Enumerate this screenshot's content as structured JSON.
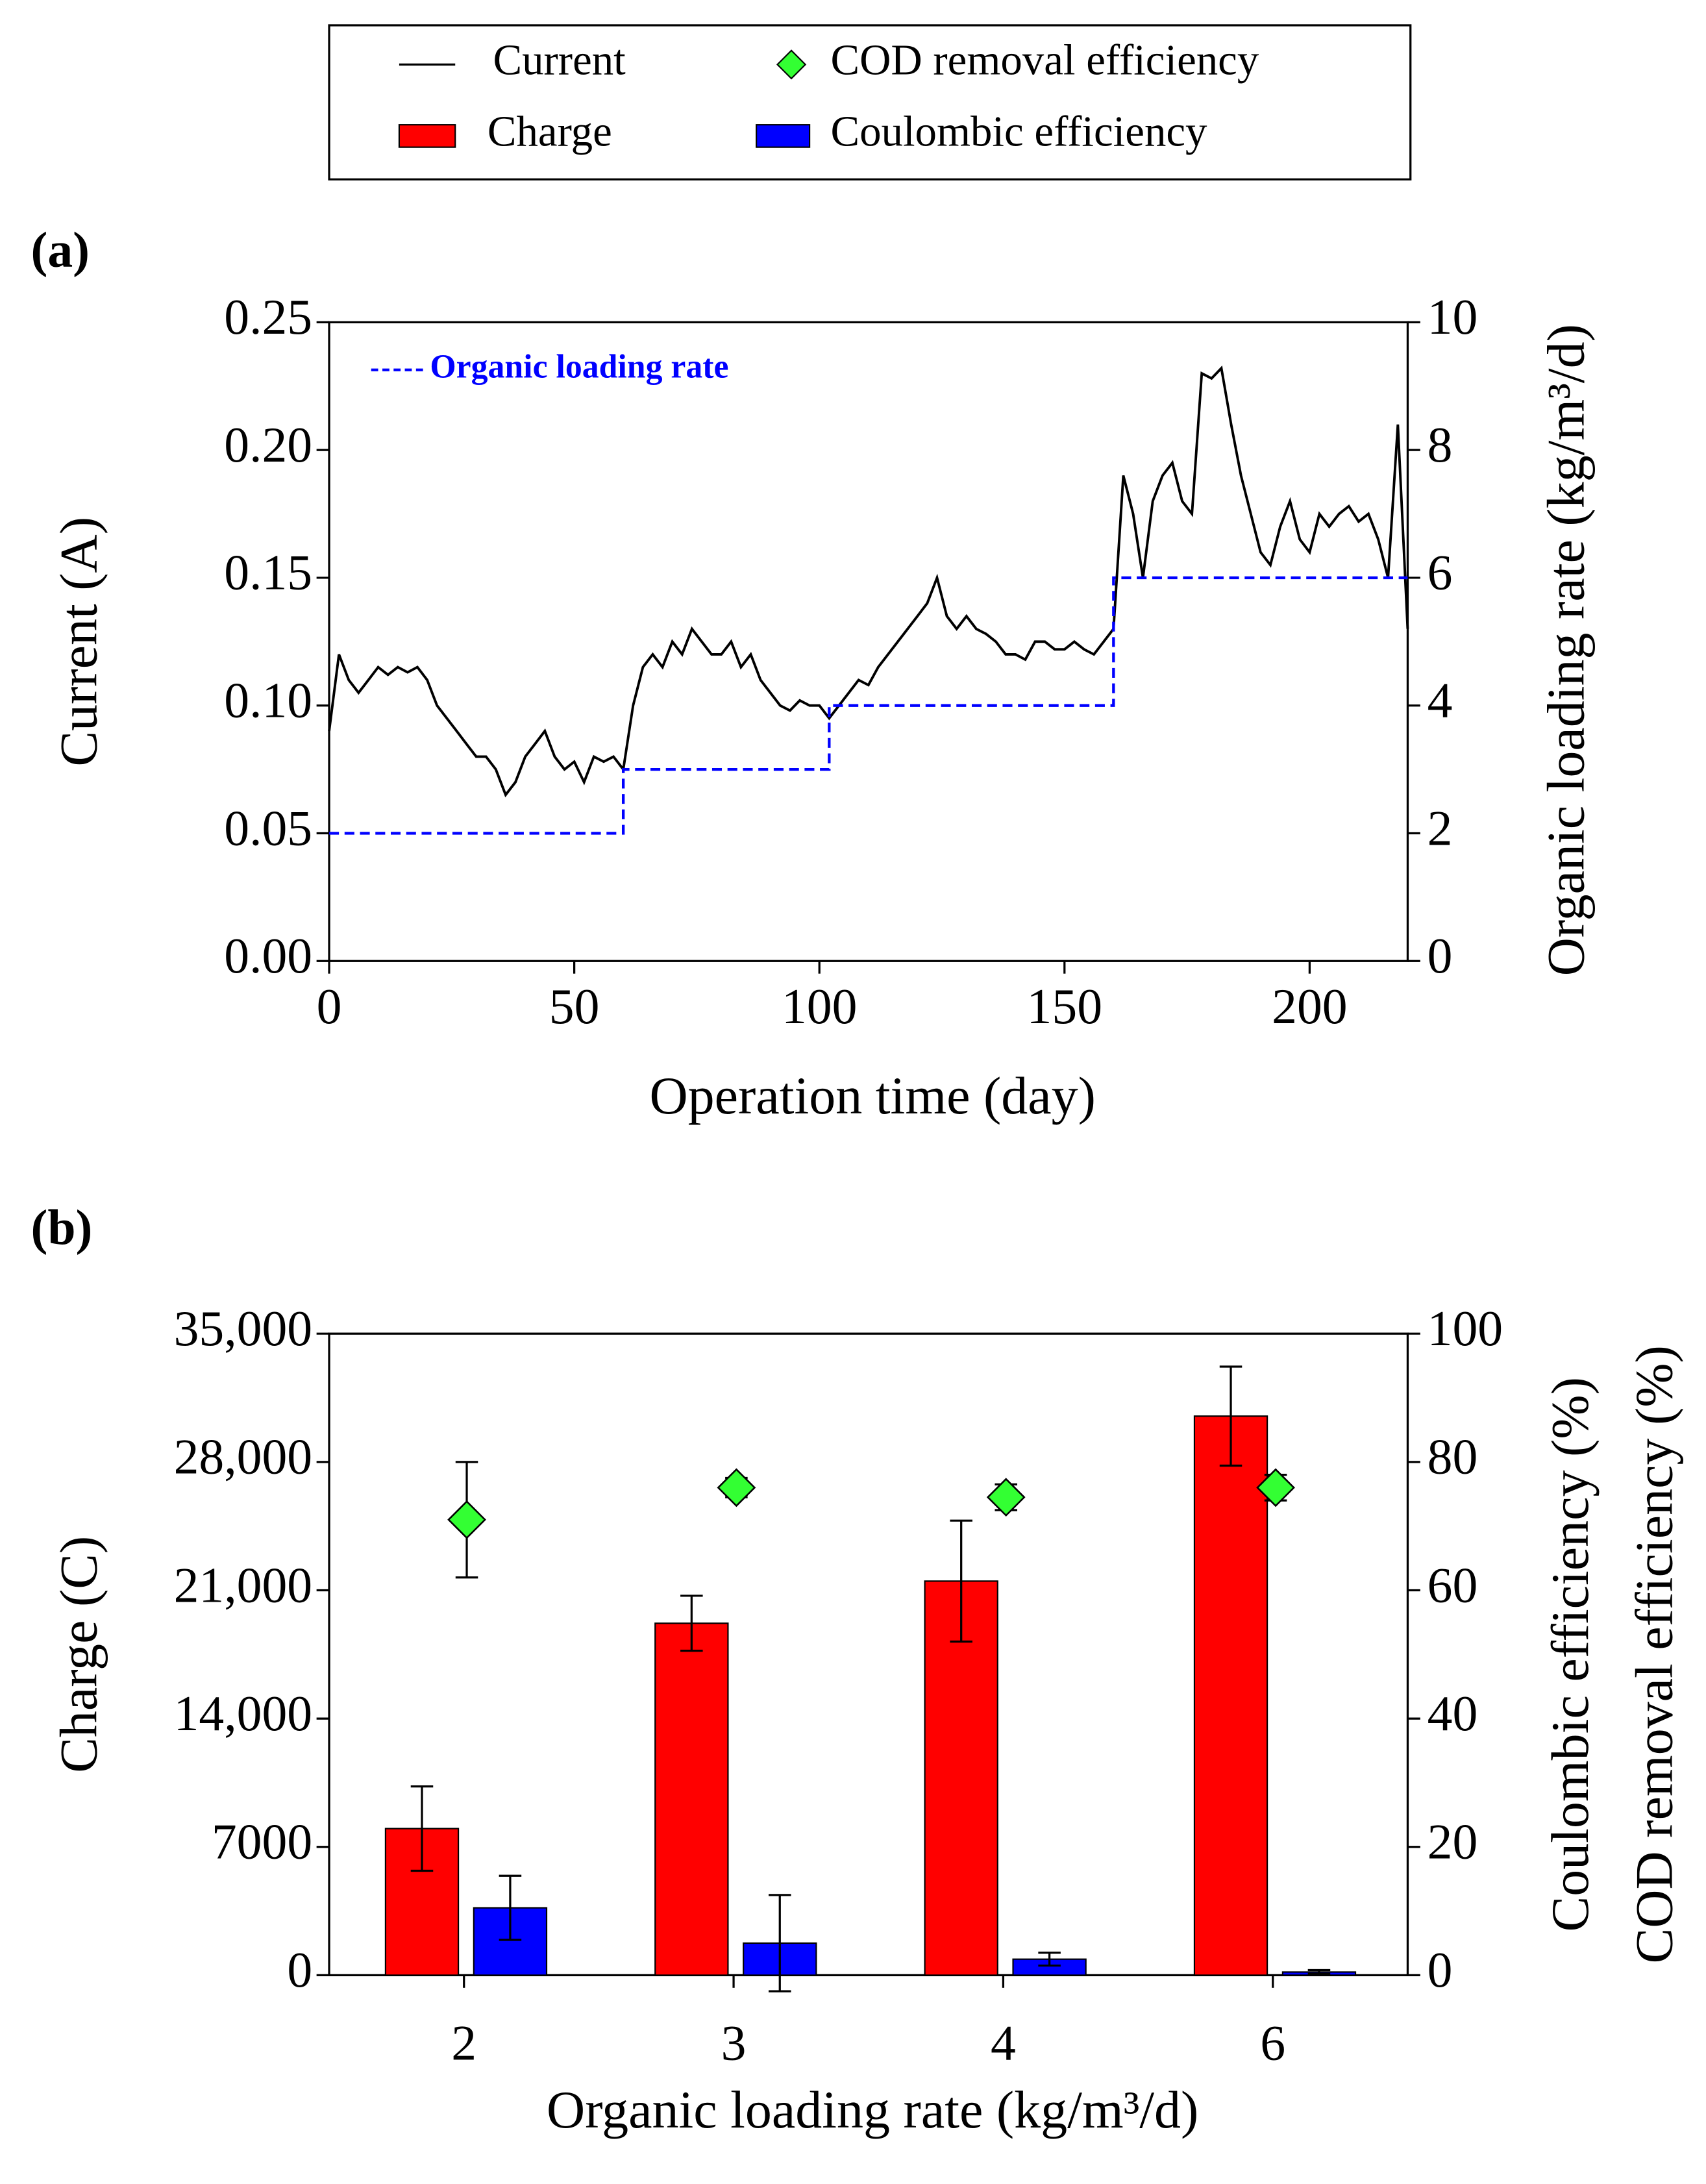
{
  "chart_data": [
    {
      "type": "line",
      "panel_label": "(a)",
      "x_label": "Operation time (day)",
      "y_label": "Current (A)",
      "y2_label": "Organic loading rate (kg/m³/d)",
      "xlim": [
        0,
        220
      ],
      "xticks": [
        0,
        50,
        100,
        150,
        200
      ],
      "ylim": [
        0,
        0.25
      ],
      "yticks": [
        {
          "value": 0,
          "label": "0.00"
        },
        {
          "value": 0.05,
          "label": "0.05"
        },
        {
          "value": 0.1,
          "label": "0.10"
        },
        {
          "value": 0.15,
          "label": "0.15"
        },
        {
          "value": 0.2,
          "label": "0.20"
        },
        {
          "value": 0.25,
          "label": "0.25"
        }
      ],
      "y2lim": [
        0,
        10
      ],
      "y2ticks": [
        0,
        2,
        4,
        6,
        8,
        10
      ],
      "series": [
        {
          "name": "Current",
          "color": "#000000",
          "x": [
            0,
            2,
            4,
            6,
            8,
            10,
            12,
            14,
            16,
            18,
            20,
            22,
            24,
            26,
            28,
            30,
            32,
            34,
            36,
            38,
            40,
            42,
            44,
            46,
            48,
            50,
            52,
            54,
            56,
            58,
            60,
            62,
            64,
            66,
            68,
            70,
            72,
            74,
            76,
            78,
            80,
            82,
            84,
            86,
            88,
            90,
            92,
            94,
            96,
            98,
            100,
            102,
            104,
            106,
            108,
            110,
            112,
            114,
            116,
            118,
            120,
            122,
            124,
            126,
            128,
            130,
            132,
            134,
            136,
            138,
            140,
            142,
            144,
            146,
            148,
            150,
            152,
            154,
            156,
            158,
            160,
            162,
            164,
            166,
            168,
            170,
            172,
            174,
            176,
            178,
            180,
            182,
            184,
            186,
            188,
            190,
            192,
            194,
            196,
            198,
            200,
            202,
            204,
            206,
            208,
            210,
            212,
            214,
            216,
            218,
            220
          ],
          "values": [
            0.09,
            0.12,
            0.11,
            0.105,
            0.11,
            0.115,
            0.112,
            0.115,
            0.113,
            0.115,
            0.11,
            0.1,
            0.095,
            0.09,
            0.085,
            0.08,
            0.08,
            0.075,
            0.065,
            0.07,
            0.08,
            0.085,
            0.09,
            0.08,
            0.075,
            0.078,
            0.07,
            0.08,
            0.078,
            0.08,
            0.075,
            0.1,
            0.115,
            0.12,
            0.115,
            0.125,
            0.12,
            0.13,
            0.125,
            0.12,
            0.12,
            0.125,
            0.115,
            0.12,
            0.11,
            0.105,
            0.1,
            0.098,
            0.102,
            0.1,
            0.1,
            0.095,
            0.1,
            0.105,
            0.11,
            0.108,
            0.115,
            0.12,
            0.125,
            0.13,
            0.135,
            0.14,
            0.15,
            0.135,
            0.13,
            0.135,
            0.13,
            0.128,
            0.125,
            0.12,
            0.12,
            0.118,
            0.125,
            0.125,
            0.122,
            0.122,
            0.125,
            0.122,
            0.12,
            0.125,
            0.13,
            0.19,
            0.175,
            0.15,
            0.18,
            0.19,
            0.195,
            0.18,
            0.175,
            0.23,
            0.228,
            0.232,
            0.21,
            0.19,
            0.175,
            0.16,
            0.155,
            0.17,
            0.18,
            0.165,
            0.16,
            0.175,
            0.17,
            0.175,
            0.178,
            0.172,
            0.175,
            0.165,
            0.15,
            0.21,
            0.13
          ]
        },
        {
          "name": "Organic loading rate",
          "color": "#0000ff",
          "axis": "y2",
          "dashed": true,
          "x": [
            0,
            60,
            60,
            102,
            102,
            160,
            160,
            220
          ],
          "values": [
            2,
            2,
            3,
            3,
            4,
            4,
            6,
            6
          ]
        }
      ]
    },
    {
      "type": "bar",
      "panel_label": "(b)",
      "x_label": "Organic loading rate (kg/m³/d)",
      "y_label": "Charge (C)",
      "y2_label": [
        "Coulombic efficiency (%)",
        "COD removal efficiency (%)"
      ],
      "categories": [
        "2",
        "3",
        "4",
        "6"
      ],
      "ylim": [
        0,
        35000
      ],
      "yticks": [
        0,
        7000,
        {
          "value": 14000,
          "label": "14,000"
        },
        {
          "value": 21000,
          "label": "21,000"
        },
        {
          "value": 28000,
          "label": "28,000"
        },
        {
          "value": 35000,
          "label": "35,000"
        }
      ],
      "y2lim": [
        0,
        100
      ],
      "y2ticks": [
        0,
        20,
        40,
        60,
        80,
        100
      ],
      "series": [
        {
          "name": "Charge",
          "color": "#ff0000",
          "values": [
            8000,
            19200,
            21500,
            30500
          ],
          "errors": [
            2300,
            1500,
            3300,
            2700
          ]
        },
        {
          "name": "Coulombic efficiency",
          "color": "#0000ff",
          "axis": "y2",
          "values": [
            10.5,
            5,
            2.5,
            0.5
          ],
          "errors": [
            5,
            7.5,
            1,
            0.3
          ]
        },
        {
          "name": "COD removal efficiency",
          "color": "#33ff33",
          "axis": "y2",
          "type": "scatter",
          "values": [
            71,
            76,
            74.5,
            76
          ],
          "errors": [
            9,
            1.5,
            2,
            2
          ]
        }
      ]
    }
  ]
}
